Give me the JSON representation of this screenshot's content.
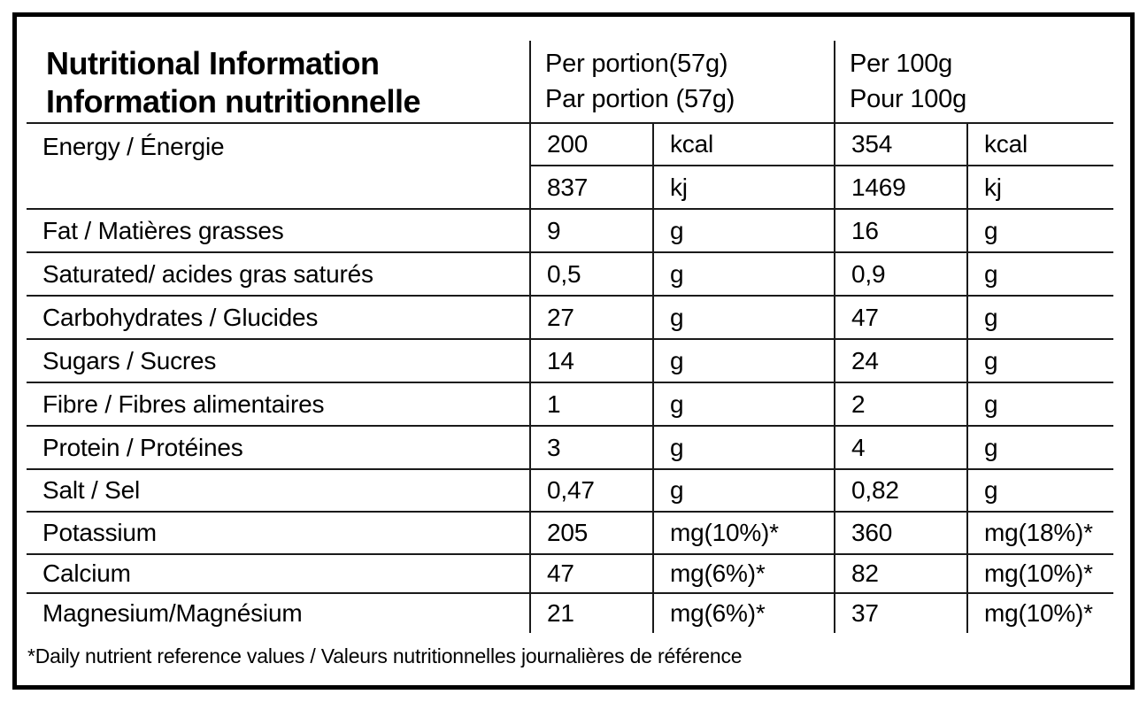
{
  "title": {
    "line1": "Nutritional Information",
    "line2": "Information nutritionnelle"
  },
  "columns": {
    "per_portion": {
      "line1": "Per portion(57g)",
      "line2": "Par portion (57g)"
    },
    "per_100g": {
      "line1": "Per 100g",
      "line2": "Pour 100g"
    }
  },
  "energy": {
    "label": "Energy / Énergie",
    "rows": [
      {
        "portion_value": "200",
        "portion_unit": "kcal",
        "per100_value": "354",
        "per100_unit": "kcal"
      },
      {
        "portion_value": "837",
        "portion_unit": "kj",
        "per100_value": "1469",
        "per100_unit": "kj"
      }
    ]
  },
  "rows": [
    {
      "label": "Fat / Matières grasses",
      "portion_value": "9",
      "portion_unit": "g",
      "per100_value": "16",
      "per100_unit": "g"
    },
    {
      "label": "Saturated/ acides gras saturés",
      "portion_value": "0,5",
      "portion_unit": "g",
      "per100_value": "0,9",
      "per100_unit": "g"
    },
    {
      "label": "Carbohydrates / Glucides",
      "portion_value": "27",
      "portion_unit": "g",
      "per100_value": "47",
      "per100_unit": "g"
    },
    {
      "label": "Sugars / Sucres",
      "portion_value": "14",
      "portion_unit": "g",
      "per100_value": "24",
      "per100_unit": "g"
    },
    {
      "label": "Fibre / Fibres alimentaires",
      "portion_value": "1",
      "portion_unit": "g",
      "per100_value": "2",
      "per100_unit": "g"
    },
    {
      "label": "Protein / Protéines",
      "portion_value": "3",
      "portion_unit": "g",
      "per100_value": "4",
      "per100_unit": "g"
    },
    {
      "label": "Salt / Sel",
      "portion_value": "0,47",
      "portion_unit": "g",
      "per100_value": "0,82",
      "per100_unit": "g"
    },
    {
      "label": "Potassium",
      "portion_value": "205",
      "portion_unit": "mg(10%)*",
      "per100_value": "360",
      "per100_unit": "mg(18%)*"
    },
    {
      "label": "Calcium",
      "portion_value": "47",
      "portion_unit": "mg(6%)*",
      "per100_value": "82",
      "per100_unit": "mg(10%)*"
    },
    {
      "label": "Magnesium/Magnésium",
      "portion_value": "21",
      "portion_unit": "mg(6%)*",
      "per100_value": "37",
      "per100_unit": "mg(10%)*"
    }
  ],
  "footnote": "*Daily nutrient reference values / Valeurs nutritionnelles journalières de référence"
}
